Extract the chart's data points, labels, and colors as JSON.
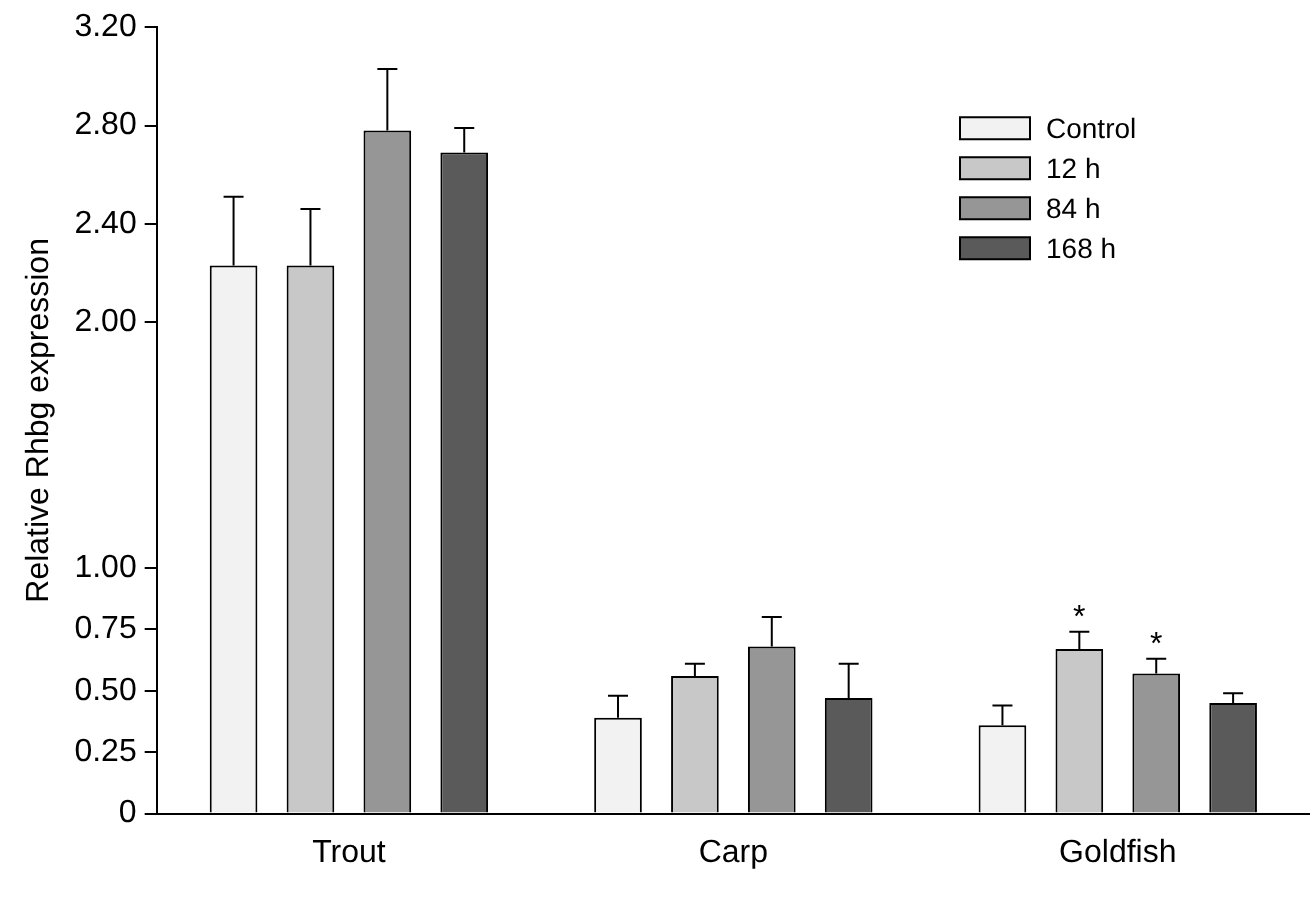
{
  "chart_data": {
    "type": "bar",
    "ylabel": "Relative Rhbg expression",
    "categories": [
      "Trout",
      "Carp",
      "Goldfish"
    ],
    "series": [
      {
        "name": "Control",
        "color": "#f2f2f2",
        "values": [
          2.23,
          0.39,
          0.36
        ],
        "errors": [
          [
            2.23,
            2.51
          ],
          [
            0.39,
            0.48
          ],
          [
            0.36,
            0.44
          ]
        ]
      },
      {
        "name": "12 h",
        "color": "#c8c8c8",
        "values": [
          2.23,
          0.56,
          0.67
        ],
        "errors": [
          [
            2.23,
            2.46
          ],
          [
            0.56,
            0.61
          ],
          [
            0.67,
            0.74
          ]
        ],
        "value_labels": [
          null,
          null,
          "*"
        ]
      },
      {
        "name": "84 h",
        "color": "#969696",
        "values": [
          2.78,
          0.68,
          0.57
        ],
        "errors": [
          [
            2.78,
            3.03
          ],
          [
            0.68,
            0.8
          ],
          [
            0.57,
            0.63
          ]
        ],
        "value_labels": [
          null,
          null,
          "*"
        ]
      },
      {
        "name": "168 h",
        "color": "#5a5a5a",
        "values": [
          2.69,
          0.47,
          0.45
        ],
        "errors": [
          [
            2.69,
            2.79
          ],
          [
            0.47,
            0.61
          ],
          [
            0.45,
            0.49
          ]
        ]
      }
    ],
    "ylim": [
      0,
      3.2
    ],
    "yticks": [
      0,
      0.25,
      {
        "value": 0.5,
        "label": "0.50"
      },
      0.75,
      {
        "value": 1,
        "label": "1.00"
      },
      {
        "value": 2,
        "label": "2.00"
      },
      {
        "value": 2.4,
        "label": "2.40"
      },
      {
        "value": 2.8,
        "label": "2.80"
      },
      {
        "value": 3.2,
        "label": "3.20"
      }
    ],
    "legend": "top right",
    "grid": false
  }
}
